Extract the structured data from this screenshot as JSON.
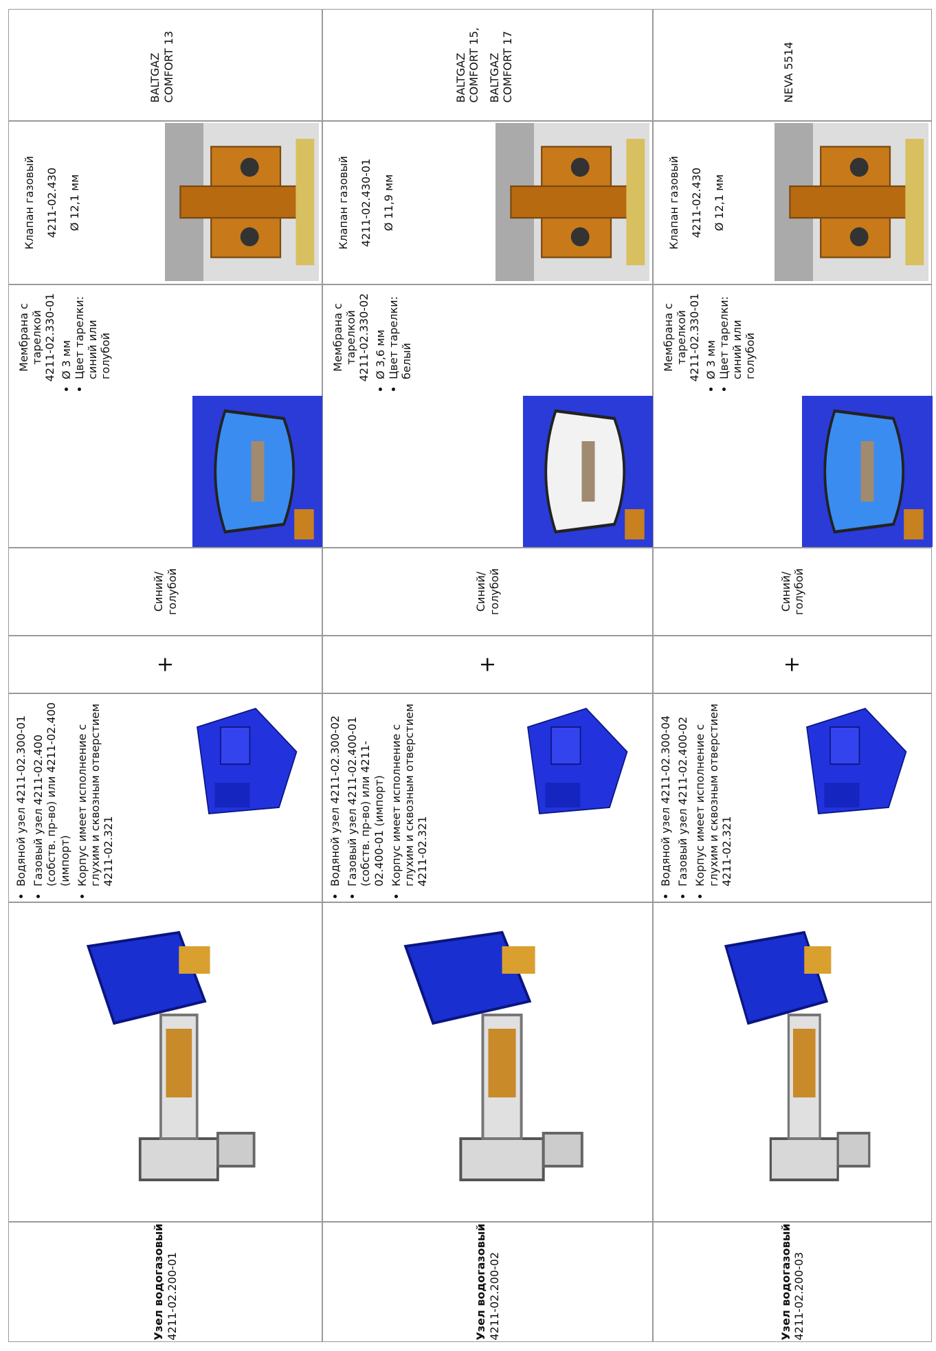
{
  "rows": [
    {
      "unit_title": "Узел водогазовый",
      "unit_code": "4211-02.200-01",
      "parts": [
        "Водяной узел 4211-02.300-01",
        "Газовый узел 4211-02.400 (собств. пр-во) или 4211-02.400 (импорт)",
        "Корпус имеет исполнение с глухим и сквозным отверстием 4211-02.321"
      ],
      "plus": "+",
      "color": "Синий/ голубой",
      "membrane": {
        "title": "Мембрана с тарелкой",
        "code": "4211-02.330-01",
        "bullets": [
          "Ø 3 мм",
          "Цвет тарелки: синий или голубой"
        ]
      },
      "valve": [
        "Клапан газовый",
        "4211-02.430",
        "Ø 12,1 мм"
      ],
      "model": [
        "BALTGAZ COMFORT 13"
      ]
    },
    {
      "unit_title": "Узел водогазовый",
      "unit_code": "4211-02.200-02",
      "parts": [
        "Водяной узел 4211-02.300-02",
        "Газовый узел 4211-02.400-01 (собств. пр-во) или 4211-02.400-01 (импорт)",
        "Корпус имеет исполнение с глухим и сквозным отверстием 4211-02.321"
      ],
      "plus": "+",
      "color": "Синий/ голубой",
      "membrane": {
        "title": "Мембрана с тарелкой",
        "code": "4211-02.330-02",
        "bullets": [
          "Ø 3,6 мм",
          "Цвет тарелки: белый"
        ]
      },
      "valve": [
        "Клапан газовый",
        "4211-02.430-01",
        "Ø 11,9 мм"
      ],
      "model": [
        "BALTGAZ COMFORT 15,",
        "BALTGAZ COMFORT 17"
      ]
    },
    {
      "unit_title": "Узел водогазовый",
      "unit_code": "4211-02.200-03",
      "parts": [
        "Водяной узел 4211-02.300-04",
        "Газовый узел 4211-02.400-02",
        "Корпус имеет исполнение с глухим и сквозным отверстием 4211-02.321"
      ],
      "plus": "+",
      "color": "Синий/ голубой",
      "membrane": {
        "title": "Мембрана с тарелкой",
        "code": "4211-02.330-01",
        "bullets": [
          "Ø 3 мм",
          "Цвет тарелки: синий или голубой"
        ]
      },
      "valve": [
        "Клапан газовый",
        "4211-02.430",
        "Ø 12,1 мм"
      ],
      "model": [
        "NEVA 5514"
      ]
    }
  ]
}
